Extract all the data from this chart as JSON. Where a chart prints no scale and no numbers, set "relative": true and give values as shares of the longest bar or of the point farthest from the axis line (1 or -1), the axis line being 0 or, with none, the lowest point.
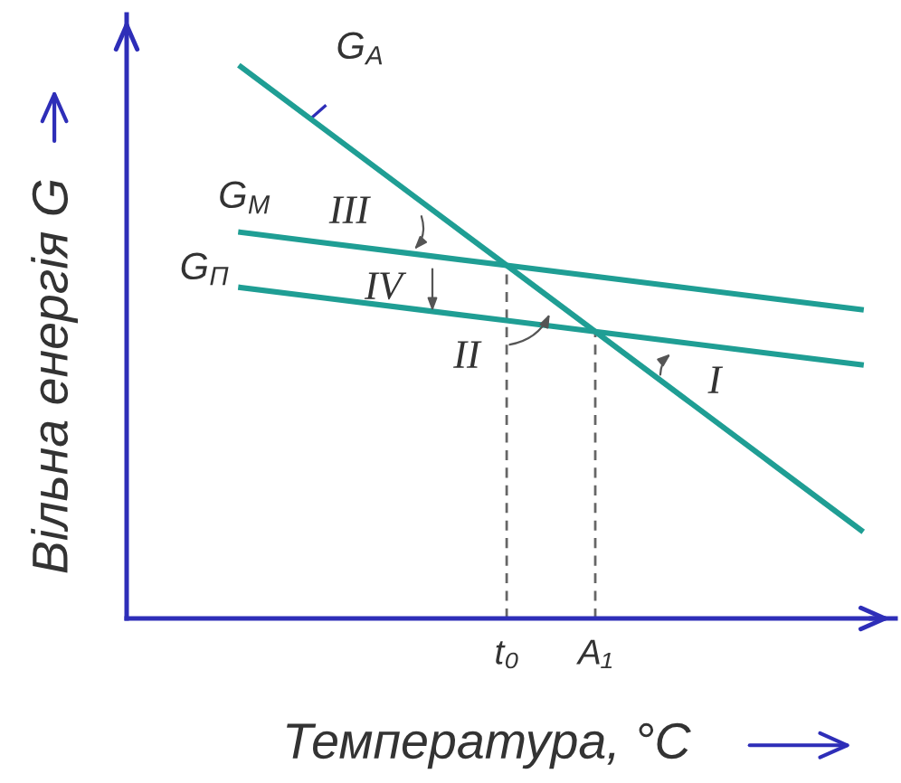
{
  "chart_data": {
    "type": "line",
    "relative": true,
    "xlabel": "Температура, °C",
    "ylabel": "Вільна енергія G",
    "categories": [
      null,
      null,
      null,
      "t₀",
      "A₁",
      null,
      null,
      null
    ],
    "line_style": "solid",
    "series": [
      {
        "name": "G$_{A}$",
        "color": "#1f9e94",
        "values": [
          1.0,
          0.88,
          0.76,
          0.64,
          0.52,
          0.4,
          0.28,
          0.16
        ]
      },
      {
        "name": "G$_{M}$",
        "color": "#1f9e94",
        "values": [
          0.7,
          0.68,
          0.66,
          0.64,
          0.62,
          0.6,
          0.58,
          0.56
        ]
      },
      {
        "name": "G$_{П}$",
        "color": "#1f9e94",
        "values": [
          0.6,
          0.58,
          0.56,
          0.54,
          0.52,
          0.5,
          0.48,
          0.46
        ]
      }
    ],
    "ref_lines": [
      {
        "axis": "x",
        "value": "t₀",
        "color": "#666666",
        "line_style": "dashed"
      },
      {
        "axis": "x",
        "value": "A₁",
        "color": "#666666",
        "line_style": "dashed"
      }
    ],
    "annotations": [
      "III",
      "IV",
      "II",
      "I"
    ]
  }
}
